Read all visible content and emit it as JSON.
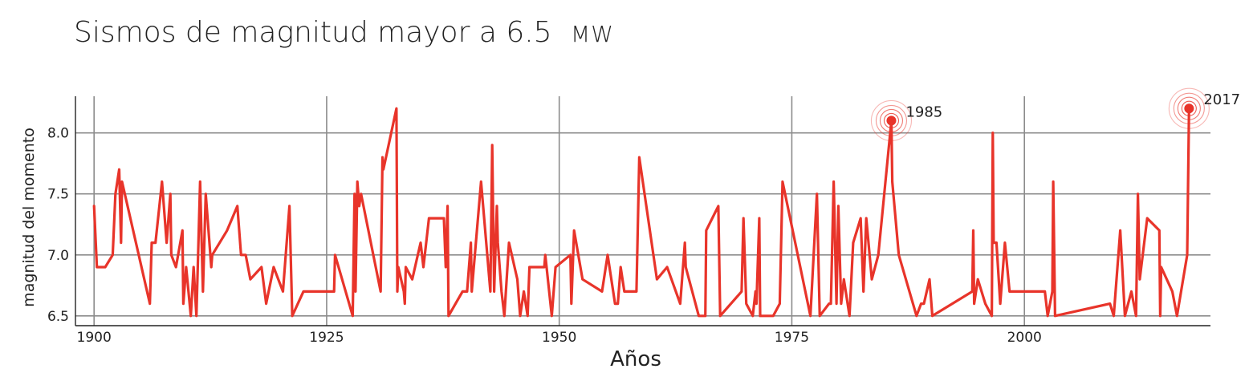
{
  "chart_data": {
    "type": "line",
    "title": "Sismos de magnitud mayor a 6.5",
    "title_unit": "MW",
    "xlabel": "Años",
    "ylabel": "magnitud del momento",
    "xlim": [
      1898,
      2020
    ],
    "ylim": [
      6.42,
      8.3
    ],
    "x_ticks": [
      1900,
      1925,
      1950,
      1975,
      2000
    ],
    "y_ticks": [
      6.5,
      7.0,
      7.5,
      8.0
    ],
    "y_tick_labels": [
      "6.5",
      "7.0",
      "7.5",
      "8.0"
    ],
    "grid": true,
    "line_color": "#e8342a",
    "grid_color": "#8c8c8c",
    "annotations": [
      {
        "label": "1985",
        "x": 1985.7,
        "y": 8.1
      },
      {
        "label": "2017",
        "x": 2017.7,
        "y": 8.2
      }
    ],
    "series": [
      {
        "points": [
          [
            1900.0,
            7.4
          ],
          [
            1900.3,
            6.9
          ],
          [
            1901.2,
            6.9
          ],
          [
            1902.0,
            7.0
          ],
          [
            1902.3,
            7.5
          ],
          [
            1902.7,
            7.7
          ],
          [
            1902.9,
            7.1
          ],
          [
            1903.0,
            7.6
          ],
          [
            1906.0,
            6.6
          ],
          [
            1906.2,
            7.1
          ],
          [
            1906.6,
            7.1
          ],
          [
            1907.3,
            7.6
          ],
          [
            1907.8,
            7.1
          ],
          [
            1908.2,
            7.5
          ],
          [
            1908.3,
            7.0
          ],
          [
            1908.8,
            6.9
          ],
          [
            1909.5,
            7.2
          ],
          [
            1909.6,
            6.6
          ],
          [
            1909.9,
            6.9
          ],
          [
            1910.4,
            6.5
          ],
          [
            1910.7,
            6.9
          ],
          [
            1911.0,
            6.5
          ],
          [
            1911.4,
            7.6
          ],
          [
            1911.7,
            6.7
          ],
          [
            1912.0,
            7.5
          ],
          [
            1912.6,
            6.9
          ],
          [
            1912.7,
            7.0
          ],
          [
            1914.3,
            7.2
          ],
          [
            1915.4,
            7.4
          ],
          [
            1915.8,
            7.0
          ],
          [
            1916.3,
            7.0
          ],
          [
            1916.8,
            6.8
          ],
          [
            1918.0,
            6.9
          ],
          [
            1918.5,
            6.6
          ],
          [
            1919.3,
            6.9
          ],
          [
            1920.3,
            6.7
          ],
          [
            1921.0,
            7.4
          ],
          [
            1921.3,
            6.5
          ],
          [
            1922.5,
            6.7
          ],
          [
            1925.8,
            6.7
          ],
          [
            1925.9,
            7.0
          ],
          [
            1927.8,
            6.5
          ],
          [
            1928.0,
            7.5
          ],
          [
            1928.1,
            6.7
          ],
          [
            1928.3,
            7.6
          ],
          [
            1928.5,
            7.4
          ],
          [
            1928.7,
            7.5
          ],
          [
            1930.8,
            6.7
          ],
          [
            1931.0,
            7.8
          ],
          [
            1931.1,
            7.7
          ],
          [
            1932.5,
            8.2
          ],
          [
            1932.6,
            6.7
          ],
          [
            1932.7,
            6.9
          ],
          [
            1933.3,
            6.7
          ],
          [
            1933.4,
            6.6
          ],
          [
            1933.5,
            6.9
          ],
          [
            1934.2,
            6.8
          ],
          [
            1934.8,
            7.0
          ],
          [
            1935.1,
            7.1
          ],
          [
            1935.4,
            6.9
          ],
          [
            1936.0,
            7.3
          ],
          [
            1937.6,
            7.3
          ],
          [
            1937.8,
            6.9
          ],
          [
            1938.0,
            7.4
          ],
          [
            1938.1,
            6.5
          ],
          [
            1939.6,
            6.7
          ],
          [
            1940.1,
            6.7
          ],
          [
            1940.5,
            7.1
          ],
          [
            1940.6,
            6.7
          ],
          [
            1941.6,
            7.6
          ],
          [
            1942.6,
            6.7
          ],
          [
            1942.8,
            7.9
          ],
          [
            1943.0,
            6.7
          ],
          [
            1943.3,
            7.4
          ],
          [
            1943.4,
            7.1
          ],
          [
            1943.8,
            6.7
          ],
          [
            1944.1,
            6.5
          ],
          [
            1944.6,
            7.1
          ],
          [
            1945.5,
            6.8
          ],
          [
            1945.8,
            6.5
          ],
          [
            1946.2,
            6.7
          ],
          [
            1946.6,
            6.5
          ],
          [
            1946.8,
            6.9
          ],
          [
            1948.4,
            6.9
          ],
          [
            1948.5,
            7.0
          ],
          [
            1949.2,
            6.5
          ],
          [
            1949.6,
            6.9
          ],
          [
            1951.2,
            7.0
          ],
          [
            1951.3,
            6.6
          ],
          [
            1951.6,
            7.2
          ],
          [
            1952.5,
            6.8
          ],
          [
            1954.6,
            6.7
          ],
          [
            1955.2,
            7.0
          ],
          [
            1956.0,
            6.6
          ],
          [
            1956.3,
            6.6
          ],
          [
            1956.6,
            6.9
          ],
          [
            1957.0,
            6.7
          ],
          [
            1958.3,
            6.7
          ],
          [
            1958.6,
            7.8
          ],
          [
            1960.5,
            6.8
          ],
          [
            1961.6,
            6.9
          ],
          [
            1963.0,
            6.6
          ],
          [
            1963.5,
            7.1
          ],
          [
            1963.6,
            6.9
          ],
          [
            1965.0,
            6.5
          ],
          [
            1965.7,
            6.5
          ],
          [
            1965.8,
            7.2
          ],
          [
            1967.1,
            7.4
          ],
          [
            1967.3,
            6.5
          ],
          [
            1969.6,
            6.7
          ],
          [
            1969.8,
            7.3
          ],
          [
            1970.1,
            6.6
          ],
          [
            1970.8,
            6.5
          ],
          [
            1971.1,
            6.7
          ],
          [
            1971.2,
            6.6
          ],
          [
            1971.5,
            7.3
          ],
          [
            1971.6,
            6.5
          ],
          [
            1973.0,
            6.5
          ],
          [
            1973.7,
            6.6
          ],
          [
            1974.0,
            7.6
          ],
          [
            1977.0,
            6.5
          ],
          [
            1977.7,
            7.5
          ],
          [
            1978.0,
            6.5
          ],
          [
            1979.0,
            6.6
          ],
          [
            1979.2,
            6.6
          ],
          [
            1979.5,
            7.6
          ],
          [
            1979.8,
            6.6
          ],
          [
            1980.0,
            7.4
          ],
          [
            1980.3,
            6.6
          ],
          [
            1980.6,
            6.8
          ],
          [
            1981.2,
            6.5
          ],
          [
            1981.6,
            7.1
          ],
          [
            1982.4,
            7.3
          ],
          [
            1982.7,
            6.7
          ],
          [
            1983.0,
            7.3
          ],
          [
            1983.6,
            6.8
          ],
          [
            1984.3,
            7.0
          ],
          [
            1985.7,
            8.1
          ],
          [
            1985.8,
            7.6
          ],
          [
            1986.5,
            7.0
          ],
          [
            1988.4,
            6.5
          ],
          [
            1988.9,
            6.6
          ],
          [
            1989.2,
            6.6
          ],
          [
            1989.8,
            6.8
          ],
          [
            1990.1,
            6.5
          ],
          [
            1994.4,
            6.7
          ],
          [
            1994.5,
            7.2
          ],
          [
            1994.6,
            6.6
          ],
          [
            1995.0,
            6.8
          ],
          [
            1995.8,
            6.6
          ],
          [
            1996.5,
            6.5
          ],
          [
            1996.6,
            8.0
          ],
          [
            1996.7,
            7.1
          ],
          [
            1997.0,
            7.1
          ],
          [
            1997.4,
            6.6
          ],
          [
            1997.9,
            7.1
          ],
          [
            1998.4,
            6.7
          ],
          [
            2002.2,
            6.7
          ],
          [
            2002.5,
            6.5
          ],
          [
            2003.0,
            6.7
          ],
          [
            2003.1,
            7.6
          ],
          [
            2003.3,
            6.5
          ],
          [
            2009.2,
            6.6
          ],
          [
            2009.6,
            6.5
          ],
          [
            2010.3,
            7.2
          ],
          [
            2010.8,
            6.5
          ],
          [
            2011.5,
            6.7
          ],
          [
            2012.0,
            6.5
          ],
          [
            2012.2,
            7.5
          ],
          [
            2012.4,
            6.8
          ],
          [
            2013.2,
            7.3
          ],
          [
            2014.5,
            7.2
          ],
          [
            2014.6,
            6.5
          ],
          [
            2014.7,
            6.9
          ],
          [
            2015.9,
            6.7
          ],
          [
            2016.4,
            6.5
          ],
          [
            2017.5,
            7.0
          ],
          [
            2017.7,
            8.2
          ]
        ]
      }
    ]
  }
}
